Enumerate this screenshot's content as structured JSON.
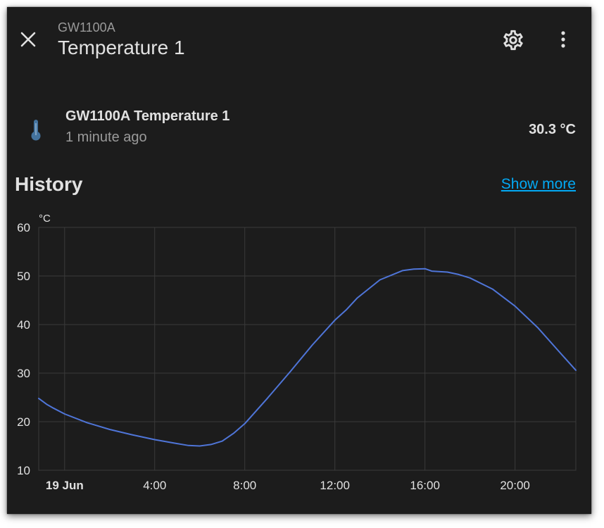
{
  "header": {
    "subtitle": "GW1100A",
    "title": "Temperature 1",
    "close_icon": "close-icon",
    "settings_icon": "gear-icon",
    "more_icon": "more-vertical-icon"
  },
  "entity": {
    "icon": "thermometer-icon",
    "icon_color": "#44739e",
    "name": "GW1100A Temperature 1",
    "last_changed": "1 minute ago",
    "state": "30.3 °C"
  },
  "history": {
    "title": "History",
    "show_more": "Show more",
    "link_color": "#03a9f4"
  },
  "chart_data": {
    "type": "line",
    "ylabel": "°C",
    "ylim": [
      10,
      60
    ],
    "yticks": [
      "60",
      "50",
      "40",
      "30",
      "20",
      "10"
    ],
    "xticks": [
      "19 Jun",
      "4:00",
      "8:00",
      "12:00",
      "16:00",
      "20:00"
    ],
    "xticks_hours": [
      0,
      4,
      8,
      12,
      16,
      20
    ],
    "xrange_hours": [
      -1.15,
      22.7
    ],
    "grid": true,
    "series": [
      {
        "color": "#4f75d8",
        "x": [
          -1.15,
          -0.8,
          -0.5,
          0,
          1,
          2,
          3,
          4,
          5,
          5.5,
          6,
          6.5,
          7,
          7.5,
          8,
          9,
          10,
          11,
          12,
          12.5,
          13,
          14,
          15,
          15.5,
          16,
          16.3,
          17,
          17.5,
          18,
          19,
          20,
          21,
          22,
          22.7
        ],
        "y": [
          24.8,
          23.6,
          22.8,
          21.6,
          19.8,
          18.4,
          17.3,
          16.3,
          15.5,
          15.1,
          15.0,
          15.3,
          16.0,
          17.6,
          19.6,
          24.8,
          30.2,
          35.8,
          40.9,
          43.0,
          45.5,
          49.2,
          51.1,
          51.4,
          51.5,
          51.0,
          50.8,
          50.3,
          49.6,
          47.3,
          43.8,
          39.4,
          34.2,
          30.6
        ]
      }
    ]
  }
}
